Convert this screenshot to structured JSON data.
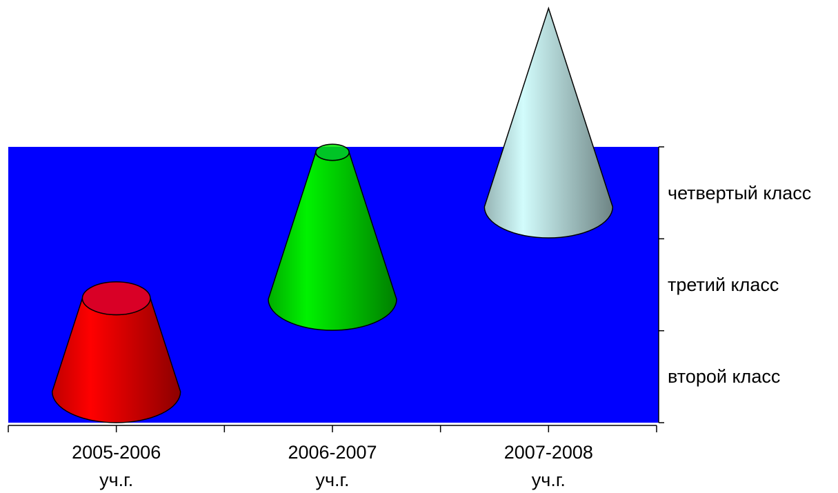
{
  "chart_data": {
    "type": "cone",
    "categories": [
      "2005-2006\nуч.г.",
      "2006-2007\nуч.г.",
      "2007-2008\nуч.г."
    ],
    "series": [
      {
        "name": "второй класс",
        "color": "#ff0000",
        "values": [
          47,
          null,
          null
        ]
      },
      {
        "name": "третий класс",
        "color": "#00e600",
        "values": [
          null,
          74,
          null
        ]
      },
      {
        "name": "четвертый класс",
        "color": "#c8f0f0",
        "values": [
          null,
          null,
          100
        ]
      }
    ],
    "ylim": [
      0,
      100
    ],
    "background": "#0000ff"
  }
}
